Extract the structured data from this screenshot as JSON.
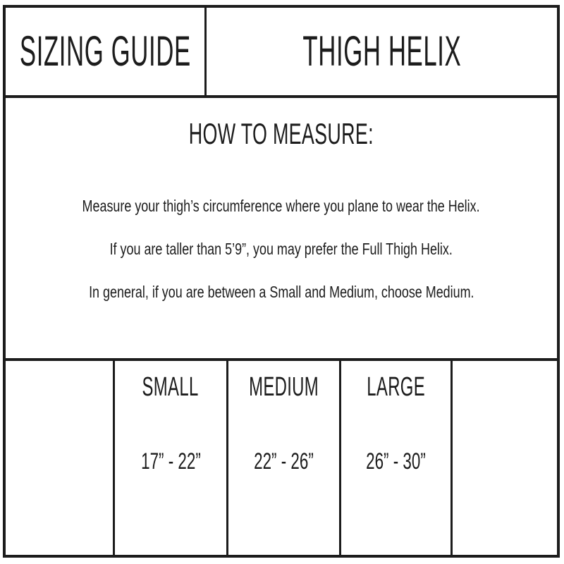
{
  "header": {
    "left_title": "SIZING GUIDE",
    "right_title": "THIGH HELIX"
  },
  "how_to_measure": {
    "title": "HOW TO MEASURE:",
    "lines": [
      "Measure your thigh’s circumference where you plane to wear the Helix.",
      "If you are taller than 5’9”, you may prefer the Full Thigh Helix.",
      "In general, if you are between a Small and Medium, choose Medium."
    ]
  },
  "size_table": {
    "columns": [
      {
        "label": "",
        "range": ""
      },
      {
        "label": "SMALL",
        "range": "17” - 22”"
      },
      {
        "label": "MEDIUM",
        "range": "22” - 26”"
      },
      {
        "label": "LARGE",
        "range": "26” - 30”"
      },
      {
        "label": "",
        "range": ""
      }
    ]
  },
  "colors": {
    "border": "#1c1c1c",
    "text": "#1c1c1c",
    "background": "#ffffff"
  }
}
